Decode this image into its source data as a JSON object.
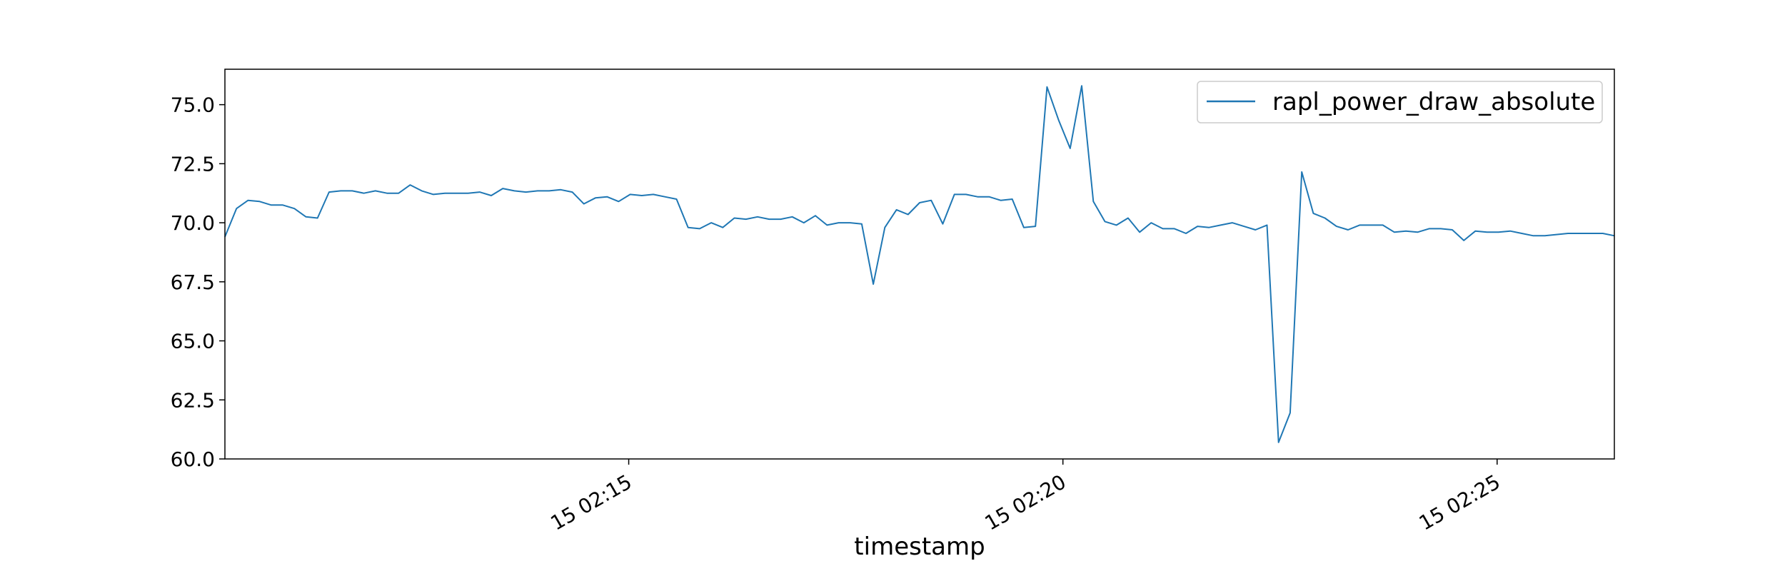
{
  "chart_data": {
    "type": "line",
    "title": "",
    "xlabel": "timestamp",
    "ylabel": "",
    "ylim": [
      60.0,
      76.5
    ],
    "xlim": [
      "15 02:10:21",
      "15 02:26:21"
    ],
    "yticks": [
      {
        "value": 60.0,
        "label": "60.0"
      },
      {
        "value": 62.5,
        "label": "62.5"
      },
      {
        "value": 65.0,
        "label": "65.0"
      },
      {
        "value": 67.5,
        "label": "67.5"
      },
      {
        "value": 70.0,
        "label": "70.0"
      },
      {
        "value": 72.5,
        "label": "72.5"
      },
      {
        "value": 75.0,
        "label": "75.0"
      }
    ],
    "xticks": [
      {
        "value": "15 02:15:00",
        "label": "15 02:15"
      },
      {
        "value": "15 02:20:00",
        "label": "15 02:20"
      },
      {
        "value": "15 02:25:00",
        "label": "15 02:25"
      }
    ],
    "grid": false,
    "legend": "top-right",
    "series": [
      {
        "name": "rapl_power_draw_absolute",
        "color": "#1f77b4",
        "points": [
          [
            "15 02:10:21",
            69.4
          ],
          [
            "15 02:10:29",
            70.6
          ],
          [
            "15 02:10:37",
            70.95
          ],
          [
            "15 02:10:45",
            70.9
          ],
          [
            "15 02:10:53",
            70.75
          ],
          [
            "15 02:11:01",
            70.75
          ],
          [
            "15 02:11:09",
            70.6
          ],
          [
            "15 02:11:17",
            70.25
          ],
          [
            "15 02:11:25",
            70.2
          ],
          [
            "15 02:11:33",
            71.3
          ],
          [
            "15 02:11:41",
            71.35
          ],
          [
            "15 02:11:49",
            71.35
          ],
          [
            "15 02:11:57",
            71.25
          ],
          [
            "15 02:12:05",
            71.35
          ],
          [
            "15 02:12:13",
            71.25
          ],
          [
            "15 02:12:21",
            71.25
          ],
          [
            "15 02:12:29",
            71.6
          ],
          [
            "15 02:12:37",
            71.35
          ],
          [
            "15 02:12:45",
            71.2
          ],
          [
            "15 02:12:53",
            71.25
          ],
          [
            "15 02:13:01",
            71.25
          ],
          [
            "15 02:13:09",
            71.25
          ],
          [
            "15 02:13:17",
            71.3
          ],
          [
            "15 02:13:25",
            71.15
          ],
          [
            "15 02:13:33",
            71.45
          ],
          [
            "15 02:13:41",
            71.35
          ],
          [
            "15 02:13:49",
            71.3
          ],
          [
            "15 02:13:57",
            71.35
          ],
          [
            "15 02:14:05",
            71.35
          ],
          [
            "15 02:14:13",
            71.4
          ],
          [
            "15 02:14:21",
            71.3
          ],
          [
            "15 02:14:29",
            70.8
          ],
          [
            "15 02:14:37",
            71.05
          ],
          [
            "15 02:14:45",
            71.1
          ],
          [
            "15 02:14:53",
            70.9
          ],
          [
            "15 02:15:01",
            71.2
          ],
          [
            "15 02:15:09",
            71.15
          ],
          [
            "15 02:15:17",
            71.2
          ],
          [
            "15 02:15:25",
            71.1
          ],
          [
            "15 02:15:33",
            71.0
          ],
          [
            "15 02:15:41",
            69.8
          ],
          [
            "15 02:15:49",
            69.75
          ],
          [
            "15 02:15:57",
            70.0
          ],
          [
            "15 02:16:05",
            69.8
          ],
          [
            "15 02:16:13",
            70.2
          ],
          [
            "15 02:16:21",
            70.15
          ],
          [
            "15 02:16:29",
            70.25
          ],
          [
            "15 02:16:37",
            70.15
          ],
          [
            "15 02:16:45",
            70.15
          ],
          [
            "15 02:16:53",
            70.25
          ],
          [
            "15 02:17:01",
            70.0
          ],
          [
            "15 02:17:09",
            70.3
          ],
          [
            "15 02:17:17",
            69.9
          ],
          [
            "15 02:17:25",
            70.0
          ],
          [
            "15 02:17:33",
            70.0
          ],
          [
            "15 02:17:41",
            69.95
          ],
          [
            "15 02:17:49",
            67.4
          ],
          [
            "15 02:17:57",
            69.8
          ],
          [
            "15 02:18:05",
            70.55
          ],
          [
            "15 02:18:13",
            70.35
          ],
          [
            "15 02:18:21",
            70.85
          ],
          [
            "15 02:18:29",
            70.95
          ],
          [
            "15 02:18:37",
            69.95
          ],
          [
            "15 02:18:45",
            71.2
          ],
          [
            "15 02:18:53",
            71.2
          ],
          [
            "15 02:19:01",
            71.1
          ],
          [
            "15 02:19:09",
            71.1
          ],
          [
            "15 02:19:17",
            70.95
          ],
          [
            "15 02:19:25",
            71.0
          ],
          [
            "15 02:19:33",
            69.8
          ],
          [
            "15 02:19:41",
            69.85
          ],
          [
            "15 02:19:49",
            75.75
          ],
          [
            "15 02:19:57",
            74.35
          ],
          [
            "15 02:20:05",
            73.15
          ],
          [
            "15 02:20:13",
            75.8
          ],
          [
            "15 02:20:21",
            70.9
          ],
          [
            "15 02:20:29",
            70.05
          ],
          [
            "15 02:20:37",
            69.9
          ],
          [
            "15 02:20:45",
            70.2
          ],
          [
            "15 02:20:53",
            69.6
          ],
          [
            "15 02:21:01",
            70.0
          ],
          [
            "15 02:21:09",
            69.75
          ],
          [
            "15 02:21:17",
            69.75
          ],
          [
            "15 02:21:25",
            69.55
          ],
          [
            "15 02:21:33",
            69.85
          ],
          [
            "15 02:21:41",
            69.8
          ],
          [
            "15 02:21:49",
            69.9
          ],
          [
            "15 02:21:57",
            70.0
          ],
          [
            "15 02:22:05",
            69.85
          ],
          [
            "15 02:22:13",
            69.7
          ],
          [
            "15 02:22:21",
            69.9
          ],
          [
            "15 02:22:29",
            60.7
          ],
          [
            "15 02:22:37",
            61.95
          ],
          [
            "15 02:22:45",
            72.15
          ],
          [
            "15 02:22:53",
            70.4
          ],
          [
            "15 02:23:01",
            70.2
          ],
          [
            "15 02:23:09",
            69.85
          ],
          [
            "15 02:23:17",
            69.7
          ],
          [
            "15 02:23:25",
            69.9
          ],
          [
            "15 02:23:33",
            69.9
          ],
          [
            "15 02:23:41",
            69.9
          ],
          [
            "15 02:23:49",
            69.6
          ],
          [
            "15 02:23:57",
            69.65
          ],
          [
            "15 02:24:05",
            69.6
          ],
          [
            "15 02:24:13",
            69.75
          ],
          [
            "15 02:24:21",
            69.75
          ],
          [
            "15 02:24:29",
            69.7
          ],
          [
            "15 02:24:37",
            69.25
          ],
          [
            "15 02:24:45",
            69.65
          ],
          [
            "15 02:24:53",
            69.6
          ],
          [
            "15 02:25:01",
            69.6
          ],
          [
            "15 02:25:09",
            69.65
          ],
          [
            "15 02:25:17",
            69.55
          ],
          [
            "15 02:25:25",
            69.45
          ],
          [
            "15 02:25:33",
            69.45
          ],
          [
            "15 02:25:41",
            69.5
          ],
          [
            "15 02:25:49",
            69.55
          ],
          [
            "15 02:25:57",
            69.55
          ],
          [
            "15 02:26:05",
            69.55
          ],
          [
            "15 02:26:13",
            69.55
          ],
          [
            "15 02:26:21",
            69.45
          ]
        ]
      }
    ]
  }
}
